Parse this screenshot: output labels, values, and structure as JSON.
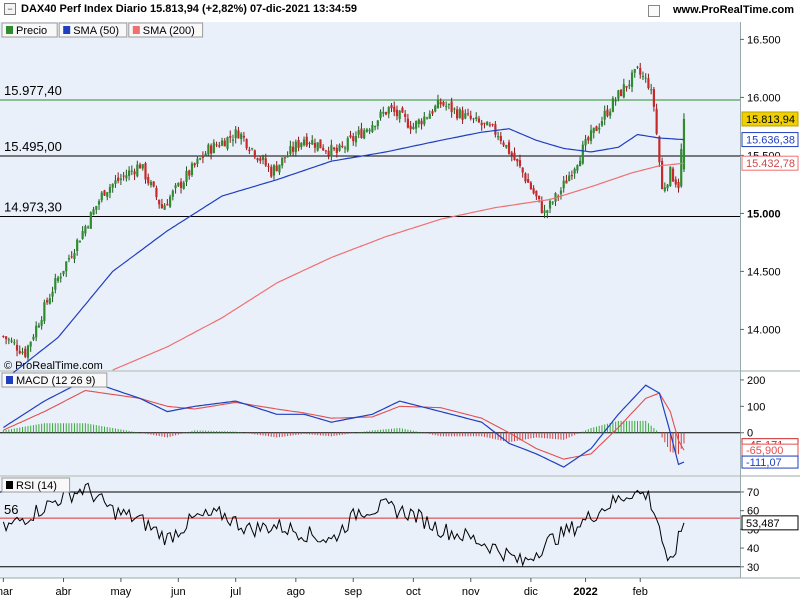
{
  "header": {
    "title": "DAX40 Perf Index Diario 15.813,94 (+2,82%) 07-dic-2021 13:34:59",
    "site": "www.ProRealTime.com",
    "watermark": "© ProRealTime.com"
  },
  "colors": {
    "bull": "#2e8b2e",
    "bear": "#c82828",
    "sma50": "#1f3fbf",
    "sma200": "#ef7070",
    "macd": "#1f3fbf",
    "signal": "#e05050",
    "rsi": "#000000",
    "panel_bg": "#eaf0fa"
  },
  "chart_data": [
    {
      "type": "candlestick",
      "legend": [
        {
          "label": "Precio",
          "color": "#2e8b2e"
        },
        {
          "label": "SMA (50)",
          "color": "#1f3fbf"
        },
        {
          "label": "SMA (200)",
          "color": "#ef7070"
        }
      ],
      "ylim": [
        13650,
        16650
      ],
      "y_ticks": [
        "16.500",
        "16.000",
        "15.500",
        "15.000",
        "14.500",
        "14.000"
      ],
      "horizontal_levels": [
        {
          "label": "15.977,40",
          "value": 15977.4,
          "color": "#2e8b2e"
        },
        {
          "label": "15.495,00",
          "value": 15495,
          "color": "#000000"
        },
        {
          "label": "14.973,30",
          "value": 14973.3,
          "color": "#000000"
        }
      ],
      "value_tags": [
        {
          "label": "15.813,94",
          "value": 15813.94,
          "bg": "#f0d000",
          "fg": "#000000",
          "border": "#b8a000"
        },
        {
          "label": "15.636,38",
          "value": 15636.38,
          "bg": "#ffffff",
          "fg": "#1f3fbf",
          "border": "#1f3fbf"
        },
        {
          "label": "15.432,78",
          "value": 15432.78,
          "bg": "#ffffff",
          "fg": "#d04848",
          "border": "#ef7070"
        }
      ],
      "bold_ticks": [
        "15.000"
      ],
      "key_points": [
        [
          0,
          13940
        ],
        [
          8,
          13800
        ],
        [
          18,
          14350
        ],
        [
          28,
          14800
        ],
        [
          37,
          15200
        ],
        [
          50,
          15420
        ],
        [
          58,
          15050
        ],
        [
          68,
          15350
        ],
        [
          75,
          15550
        ],
        [
          86,
          15700
        ],
        [
          98,
          15360
        ],
        [
          110,
          15650
        ],
        [
          122,
          15520
        ],
        [
          131,
          15700
        ],
        [
          141,
          15900
        ],
        [
          150,
          15750
        ],
        [
          160,
          15950
        ],
        [
          170,
          15820
        ],
        [
          181,
          15690
        ],
        [
          190,
          15350
        ],
        [
          198,
          15000
        ],
        [
          204,
          15200
        ],
        [
          212,
          15550
        ],
        [
          220,
          15850
        ],
        [
          226,
          16050
        ],
        [
          232,
          16220
        ],
        [
          236,
          16120
        ],
        [
          238,
          15930
        ],
        [
          241,
          15200
        ],
        [
          244,
          15350
        ],
        [
          247,
          15250
        ],
        [
          249,
          15814
        ]
      ],
      "sma50_points": [
        [
          0,
          13560
        ],
        [
          20,
          13930
        ],
        [
          40,
          14500
        ],
        [
          60,
          14850
        ],
        [
          80,
          15150
        ],
        [
          100,
          15290
        ],
        [
          120,
          15450
        ],
        [
          140,
          15530
        ],
        [
          160,
          15630
        ],
        [
          175,
          15700
        ],
        [
          185,
          15730
        ],
        [
          195,
          15630
        ],
        [
          205,
          15560
        ],
        [
          215,
          15530
        ],
        [
          225,
          15570
        ],
        [
          232,
          15680
        ],
        [
          240,
          15650
        ],
        [
          249,
          15636
        ]
      ],
      "sma200_points": [
        [
          40,
          13650
        ],
        [
          60,
          13850
        ],
        [
          80,
          14100
        ],
        [
          100,
          14400
        ],
        [
          120,
          14620
        ],
        [
          140,
          14800
        ],
        [
          160,
          14950
        ],
        [
          180,
          15050
        ],
        [
          200,
          15120
        ],
        [
          215,
          15230
        ],
        [
          230,
          15350
        ],
        [
          240,
          15410
        ],
        [
          249,
          15433
        ]
      ]
    },
    {
      "type": "line",
      "legend": [
        {
          "label": "MACD (12 26 9)",
          "color": "#1f3fbf"
        }
      ],
      "ylim": [
        -160,
        230
      ],
      "y_ticks": [
        "200",
        "100",
        "0"
      ],
      "value_tags": [
        {
          "label": "-45,171",
          "value": -45.171,
          "fg": "#c82828"
        },
        {
          "label": "-65,900",
          "value": -65.9,
          "fg": "#e05050"
        },
        {
          "label": "-111,07",
          "value": -111.07,
          "fg": "#1f3fbf"
        }
      ],
      "macd_points": [
        [
          0,
          20
        ],
        [
          15,
          120
        ],
        [
          30,
          200
        ],
        [
          50,
          130
        ],
        [
          60,
          80
        ],
        [
          70,
          100
        ],
        [
          85,
          120
        ],
        [
          100,
          70
        ],
        [
          110,
          70
        ],
        [
          120,
          40
        ],
        [
          135,
          70
        ],
        [
          145,
          120
        ],
        [
          160,
          80
        ],
        [
          175,
          40
        ],
        [
          185,
          -40
        ],
        [
          195,
          -80
        ],
        [
          205,
          -130
        ],
        [
          215,
          -60
        ],
        [
          225,
          70
        ],
        [
          235,
          180
        ],
        [
          240,
          150
        ],
        [
          244,
          0
        ],
        [
          247,
          -120
        ],
        [
          249,
          -111
        ]
      ],
      "signal_points": [
        [
          0,
          10
        ],
        [
          15,
          80
        ],
        [
          30,
          160
        ],
        [
          50,
          130
        ],
        [
          60,
          100
        ],
        [
          70,
          90
        ],
        [
          85,
          115
        ],
        [
          100,
          90
        ],
        [
          110,
          75
        ],
        [
          120,
          55
        ],
        [
          135,
          60
        ],
        [
          145,
          100
        ],
        [
          160,
          95
        ],
        [
          175,
          55
        ],
        [
          185,
          0
        ],
        [
          195,
          -60
        ],
        [
          205,
          -100
        ],
        [
          215,
          -80
        ],
        [
          225,
          20
        ],
        [
          235,
          130
        ],
        [
          240,
          150
        ],
        [
          244,
          80
        ],
        [
          247,
          -30
        ],
        [
          249,
          -66
        ]
      ]
    },
    {
      "type": "line",
      "legend": [
        {
          "label": "RSI (14)",
          "color": "#000000"
        }
      ],
      "ylim": [
        24,
        78
      ],
      "y_ticks": [
        "70",
        "60",
        "50",
        "40",
        "30"
      ],
      "levels": [
        {
          "value": 70,
          "color": "#000000"
        },
        {
          "value": 56,
          "label": "56",
          "color": "#d83030"
        },
        {
          "value": 30,
          "color": "#000000"
        }
      ],
      "value_tags": [
        {
          "label": "53,487",
          "value": 53.487
        }
      ],
      "rsi_points": [
        [
          0,
          50
        ],
        [
          10,
          58
        ],
        [
          20,
          66
        ],
        [
          30,
          72
        ],
        [
          40,
          60
        ],
        [
          50,
          55
        ],
        [
          60,
          45
        ],
        [
          70,
          56
        ],
        [
          80,
          58
        ],
        [
          90,
          50
        ],
        [
          100,
          52
        ],
        [
          110,
          48
        ],
        [
          120,
          44
        ],
        [
          130,
          60
        ],
        [
          140,
          62
        ],
        [
          150,
          58
        ],
        [
          160,
          50
        ],
        [
          170,
          46
        ],
        [
          180,
          40
        ],
        [
          190,
          32
        ],
        [
          200,
          44
        ],
        [
          210,
          52
        ],
        [
          220,
          62
        ],
        [
          230,
          70
        ],
        [
          236,
          68
        ],
        [
          240,
          52
        ],
        [
          243,
          29
        ],
        [
          246,
          40
        ],
        [
          249,
          53.5
        ]
      ]
    }
  ],
  "x_axis": {
    "labels": [
      "mar",
      "abr",
      "may",
      "jun",
      "jul",
      "ago",
      "sep",
      "oct",
      "nov",
      "dic",
      "2022",
      "feb"
    ],
    "label_positions": [
      0,
      22,
      43,
      64,
      85,
      107,
      128,
      150,
      171,
      193,
      213,
      233
    ],
    "total_bars": 270,
    "bold_labels": [
      "2022"
    ]
  }
}
